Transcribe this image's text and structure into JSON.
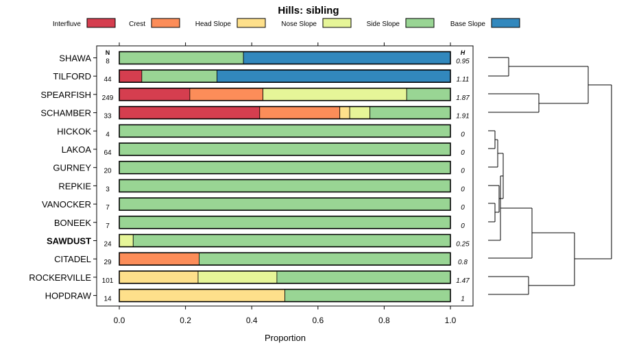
{
  "chart_data": {
    "type": "bar",
    "stacked": true,
    "orientation": "horizontal",
    "title": "Hills: sibling",
    "xlabel": "Proportion",
    "xlim": [
      0,
      1
    ],
    "xticks": [
      0,
      0.2,
      0.4,
      0.6,
      0.8,
      1
    ],
    "xtick_labels": [
      "0.0",
      "0.2",
      "0.4",
      "0.6",
      "0.8",
      "1.0"
    ],
    "n_header": "N",
    "h_header": "H",
    "legend_position": "top",
    "legend": [
      {
        "name": "Interfluve",
        "color": "#d53e4f"
      },
      {
        "name": "Crest",
        "color": "#fc8d59"
      },
      {
        "name": "Head Slope",
        "color": "#fee08b"
      },
      {
        "name": "Nose Slope",
        "color": "#e6f598"
      },
      {
        "name": "Side Slope",
        "color": "#99d594"
      },
      {
        "name": "Base Slope",
        "color": "#3288bd"
      }
    ],
    "rows": [
      {
        "name": "SHAWA",
        "n": "8",
        "h": "0.95",
        "bold": false,
        "values": [
          0,
          0,
          0,
          0,
          0.375,
          0.625
        ]
      },
      {
        "name": "TILFORD",
        "n": "44",
        "h": "1.11",
        "bold": false,
        "values": [
          0.068,
          0,
          0,
          0,
          0.227,
          0.705
        ]
      },
      {
        "name": "SPEARFISH",
        "n": "249",
        "h": "1.87",
        "bold": false,
        "values": [
          0.213,
          0.221,
          0,
          0.434,
          0.132,
          0
        ]
      },
      {
        "name": "SCHAMBER",
        "n": "33",
        "h": "1.91",
        "bold": false,
        "values": [
          0.424,
          0.242,
          0.03,
          0.061,
          0.243,
          0
        ]
      },
      {
        "name": "HICKOK",
        "n": "4",
        "h": "0",
        "bold": false,
        "values": [
          0,
          0,
          0,
          0,
          1,
          0
        ]
      },
      {
        "name": "LAKOA",
        "n": "64",
        "h": "0",
        "bold": false,
        "values": [
          0,
          0,
          0,
          0,
          1,
          0
        ]
      },
      {
        "name": "GURNEY",
        "n": "20",
        "h": "0",
        "bold": false,
        "values": [
          0,
          0,
          0,
          0,
          1,
          0
        ]
      },
      {
        "name": "REPKIE",
        "n": "3",
        "h": "0",
        "bold": false,
        "values": [
          0,
          0,
          0,
          0,
          1,
          0
        ]
      },
      {
        "name": "VANOCKER",
        "n": "7",
        "h": "0",
        "bold": false,
        "values": [
          0,
          0,
          0,
          0,
          1,
          0
        ]
      },
      {
        "name": "BONEEK",
        "n": "7",
        "h": "0",
        "bold": false,
        "values": [
          0,
          0,
          0,
          0,
          1,
          0
        ]
      },
      {
        "name": "SAWDUST",
        "n": "24",
        "h": "0.25",
        "bold": true,
        "values": [
          0,
          0,
          0,
          0.042,
          0.958,
          0
        ]
      },
      {
        "name": "CITADEL",
        "n": "29",
        "h": "0.8",
        "bold": false,
        "values": [
          0,
          0.241,
          0,
          0,
          0.759,
          0
        ]
      },
      {
        "name": "ROCKERVILLE",
        "n": "101",
        "h": "1.47",
        "bold": false,
        "values": [
          0,
          0,
          0.238,
          0.238,
          0.524,
          0
        ]
      },
      {
        "name": "HOPDRAW",
        "n": "14",
        "h": "1",
        "bold": false,
        "values": [
          0,
          0,
          0.5,
          0,
          0.5,
          0
        ]
      }
    ]
  }
}
